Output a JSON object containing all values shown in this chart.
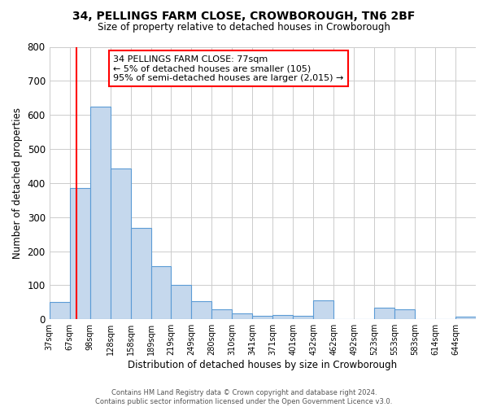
{
  "title": "34, PELLINGS FARM CLOSE, CROWBOROUGH, TN6 2BF",
  "subtitle": "Size of property relative to detached houses in Crowborough",
  "xlabel": "Distribution of detached houses by size in Crowborough",
  "ylabel": "Number of detached properties",
  "bin_labels": [
    "37sqm",
    "67sqm",
    "98sqm",
    "128sqm",
    "158sqm",
    "189sqm",
    "219sqm",
    "249sqm",
    "280sqm",
    "310sqm",
    "341sqm",
    "371sqm",
    "401sqm",
    "432sqm",
    "462sqm",
    "492sqm",
    "523sqm",
    "553sqm",
    "583sqm",
    "614sqm",
    "644sqm"
  ],
  "bar_heights": [
    50,
    385,
    625,
    443,
    267,
    155,
    100,
    52,
    30,
    18,
    10,
    12,
    10,
    55,
    0,
    0,
    35,
    30,
    0,
    0,
    8
  ],
  "bar_color": "#c5d8ed",
  "bar_edge_color": "#5b9bd5",
  "ylim": [
    0,
    800
  ],
  "yticks": [
    0,
    100,
    200,
    300,
    400,
    500,
    600,
    700,
    800
  ],
  "red_line_x": 1.32,
  "annotation_text": "34 PELLINGS FARM CLOSE: 77sqm\n← 5% of detached houses are smaller (105)\n95% of semi-detached houses are larger (2,015) →",
  "footer_line1": "Contains HM Land Registry data © Crown copyright and database right 2024.",
  "footer_line2": "Contains public sector information licensed under the Open Government Licence v3.0.",
  "background_color": "#ffffff",
  "grid_color": "#cccccc"
}
